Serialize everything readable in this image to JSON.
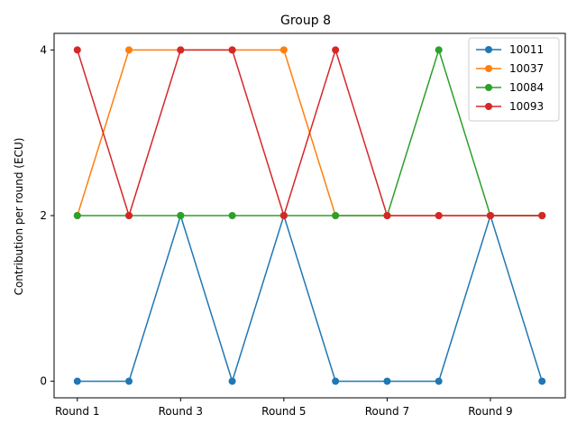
{
  "chart_data": {
    "type": "line",
    "title": "Group 8",
    "xlabel": "",
    "ylabel": "Contribution per round (ECU)",
    "x": [
      1,
      2,
      3,
      4,
      5,
      6,
      7,
      8,
      9,
      10
    ],
    "xticks": [
      1,
      3,
      5,
      7,
      9
    ],
    "xtick_labels": [
      "Round 1",
      "Round 3",
      "Round 5",
      "Round 7",
      "Round 9"
    ],
    "yticks": [
      0,
      2,
      4
    ],
    "ylim": [
      -0.2,
      4.2
    ],
    "xlim": [
      0.55,
      10.45
    ],
    "legend_position": "top-right",
    "grid": false,
    "series": [
      {
        "name": "10011",
        "color": "#1f77b4",
        "values": [
          0,
          0,
          2,
          0,
          2,
          0,
          0,
          0,
          2,
          0
        ]
      },
      {
        "name": "10037",
        "color": "#ff7f0e",
        "values": [
          2,
          4,
          4,
          4,
          4,
          2,
          2,
          2,
          2,
          2
        ]
      },
      {
        "name": "10084",
        "color": "#2ca02c",
        "values": [
          2,
          2,
          2,
          2,
          2,
          2,
          2,
          4,
          2,
          2
        ]
      },
      {
        "name": "10093",
        "color": "#d62728",
        "values": [
          4,
          2,
          4,
          4,
          2,
          4,
          2,
          2,
          2,
          2
        ]
      }
    ]
  }
}
